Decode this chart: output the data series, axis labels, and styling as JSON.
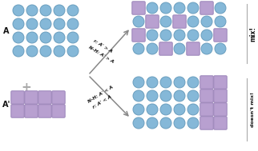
{
  "circle_color": "#85B8D8",
  "circle_edge": "#6A9EBE",
  "square_color": "#B8A0D0",
  "square_edge": "#9A84B8",
  "bg_color": "#FFFFFF",
  "arrow_color": "#888888",
  "text_color": "#111111",
  "mix_grid": [
    [
      0,
      1,
      1,
      1,
      1,
      0,
      1
    ],
    [
      1,
      0,
      1,
      0,
      1,
      1,
      1
    ],
    [
      0,
      1,
      1,
      1,
      1,
      1,
      0
    ],
    [
      1,
      1,
      0,
      1,
      0,
      1,
      1
    ]
  ],
  "nomix_grid": [
    [
      1,
      1,
      1,
      1,
      1,
      0,
      0
    ],
    [
      1,
      1,
      1,
      1,
      1,
      0,
      0
    ],
    [
      1,
      1,
      1,
      1,
      1,
      0,
      0
    ],
    [
      1,
      1,
      1,
      1,
      1,
      0,
      0
    ]
  ],
  "label_A": "A",
  "label_Ap": "A'",
  "label_mix": "mix!",
  "label_nomix": "doesn't mix!",
  "arrow1_label_top": "r: A' > A",
  "arrow1_label_bot": "N-H: A' > A",
  "arrow2_label_top": "N-H: A' < A",
  "arrow2_label_bot": "r: A' < A"
}
